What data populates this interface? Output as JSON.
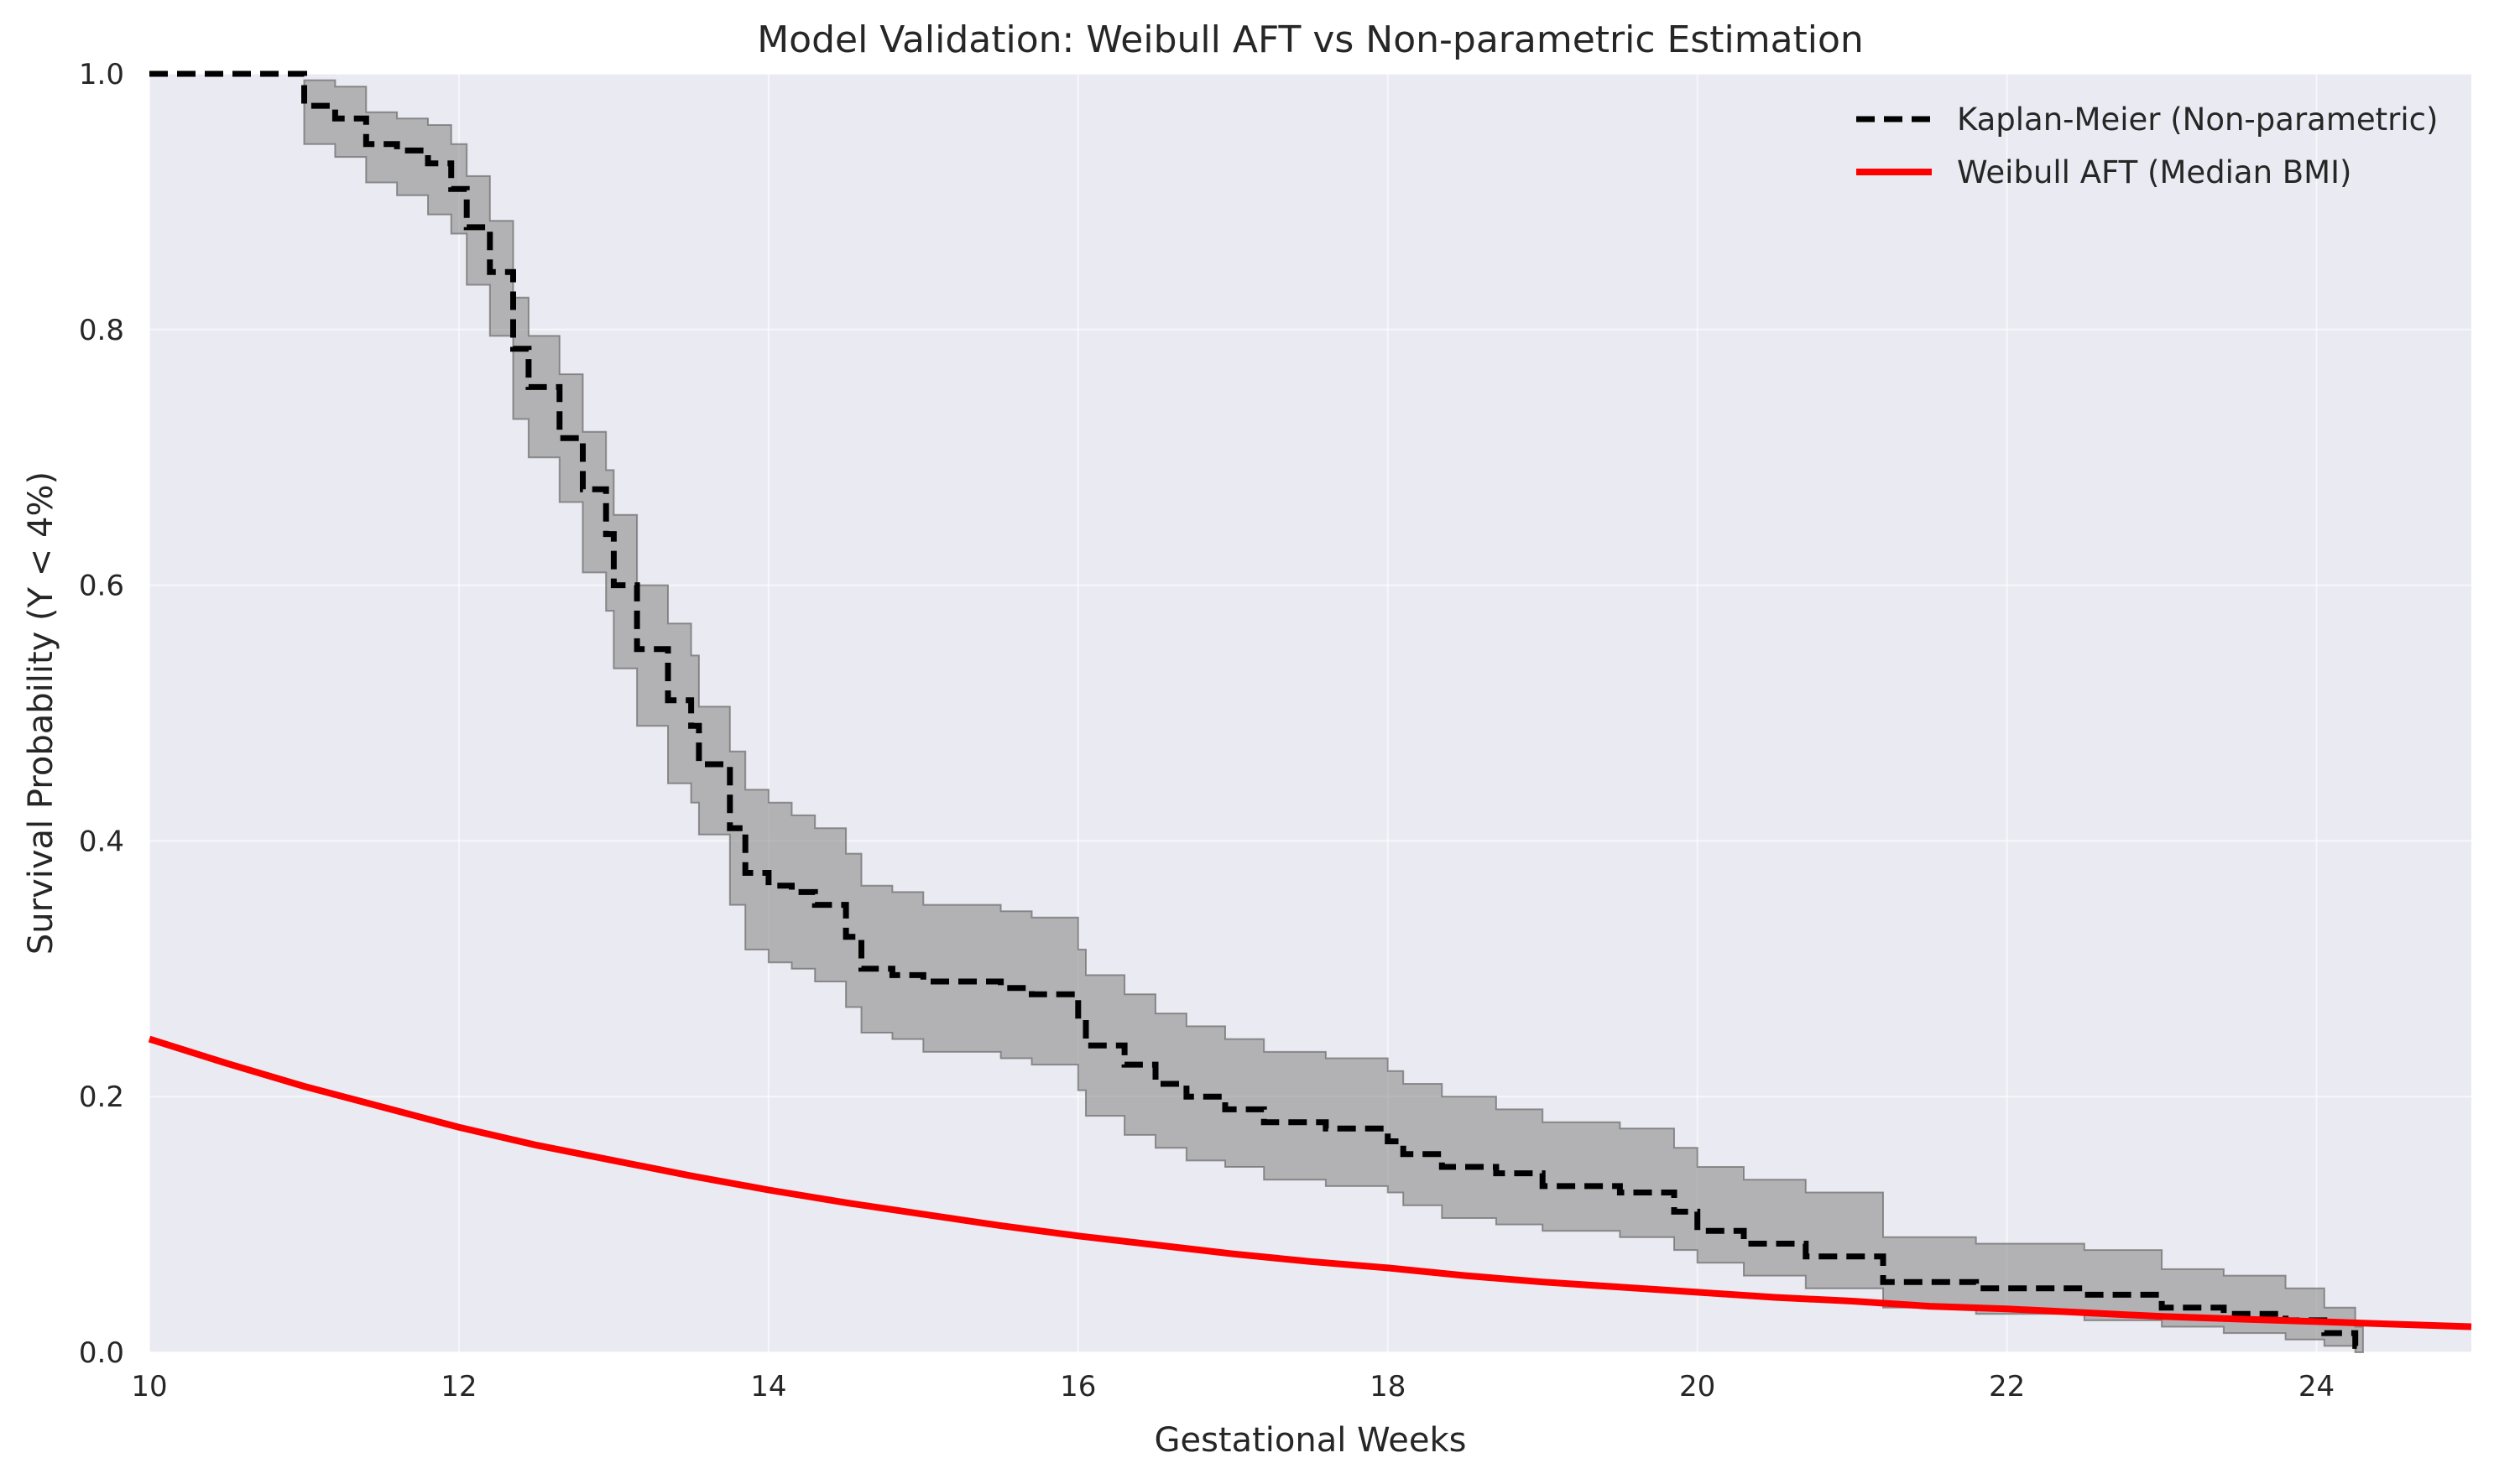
{
  "chart_data": {
    "type": "line",
    "title": "Model Validation: Weibull AFT vs Non-parametric Estimation",
    "xlabel": "Gestational Weeks",
    "ylabel": "Survival Probability (Y < 4%)",
    "xlim": [
      10,
      25
    ],
    "ylim": [
      0,
      1.0
    ],
    "xticks": [
      10,
      12,
      14,
      16,
      18,
      20,
      22,
      24
    ],
    "xtick_labels": [
      "10",
      "12",
      "14",
      "16",
      "18",
      "20",
      "22",
      "24"
    ],
    "yticks": [
      0.0,
      0.2,
      0.4,
      0.6,
      0.8,
      1.0
    ],
    "ytick_labels": [
      "0.0",
      "0.2",
      "0.4",
      "0.6",
      "0.8",
      "1.0"
    ],
    "grid": true,
    "background": "#eaeaf2",
    "legend_position": "top-right",
    "series": [
      {
        "name": "Kaplan-Meier (Non-parametric)",
        "style": "dashed-step",
        "color": "#000000",
        "ci_color": "#8c8c8c",
        "points": [
          [
            10.0,
            1.0,
            1.0,
            1.0
          ],
          [
            11.0,
            0.975,
            0.995,
            0.945
          ],
          [
            11.2,
            0.965,
            0.99,
            0.935
          ],
          [
            11.4,
            0.945,
            0.97,
            0.915
          ],
          [
            11.6,
            0.94,
            0.965,
            0.905
          ],
          [
            11.8,
            0.93,
            0.96,
            0.89
          ],
          [
            11.95,
            0.91,
            0.945,
            0.875
          ],
          [
            12.05,
            0.88,
            0.92,
            0.835
          ],
          [
            12.2,
            0.845,
            0.885,
            0.795
          ],
          [
            12.35,
            0.785,
            0.825,
            0.73
          ],
          [
            12.45,
            0.755,
            0.795,
            0.7
          ],
          [
            12.65,
            0.715,
            0.765,
            0.665
          ],
          [
            12.8,
            0.675,
            0.72,
            0.61
          ],
          [
            12.95,
            0.64,
            0.69,
            0.58
          ],
          [
            13.0,
            0.6,
            0.655,
            0.535
          ],
          [
            13.15,
            0.55,
            0.6,
            0.49
          ],
          [
            13.35,
            0.51,
            0.57,
            0.445
          ],
          [
            13.5,
            0.49,
            0.545,
            0.43
          ],
          [
            13.55,
            0.46,
            0.505,
            0.405
          ],
          [
            13.75,
            0.41,
            0.47,
            0.35
          ],
          [
            13.85,
            0.375,
            0.44,
            0.315
          ],
          [
            14.0,
            0.365,
            0.43,
            0.305
          ],
          [
            14.15,
            0.36,
            0.42,
            0.3
          ],
          [
            14.3,
            0.35,
            0.41,
            0.29
          ],
          [
            14.5,
            0.325,
            0.39,
            0.27
          ],
          [
            14.6,
            0.3,
            0.365,
            0.25
          ],
          [
            14.8,
            0.295,
            0.36,
            0.245
          ],
          [
            15.0,
            0.29,
            0.35,
            0.235
          ],
          [
            15.5,
            0.285,
            0.345,
            0.23
          ],
          [
            15.7,
            0.28,
            0.34,
            0.225
          ],
          [
            16.0,
            0.26,
            0.315,
            0.205
          ],
          [
            16.05,
            0.24,
            0.295,
            0.185
          ],
          [
            16.3,
            0.225,
            0.28,
            0.17
          ],
          [
            16.5,
            0.21,
            0.265,
            0.16
          ],
          [
            16.7,
            0.2,
            0.255,
            0.15
          ],
          [
            16.95,
            0.19,
            0.245,
            0.145
          ],
          [
            17.2,
            0.18,
            0.235,
            0.135
          ],
          [
            17.6,
            0.175,
            0.23,
            0.13
          ],
          [
            18.0,
            0.165,
            0.22,
            0.125
          ],
          [
            18.1,
            0.155,
            0.21,
            0.115
          ],
          [
            18.35,
            0.145,
            0.2,
            0.105
          ],
          [
            18.7,
            0.14,
            0.19,
            0.1
          ],
          [
            19.0,
            0.13,
            0.18,
            0.095
          ],
          [
            19.5,
            0.125,
            0.175,
            0.09
          ],
          [
            19.85,
            0.11,
            0.16,
            0.08
          ],
          [
            20.0,
            0.095,
            0.145,
            0.07
          ],
          [
            20.3,
            0.085,
            0.135,
            0.06
          ],
          [
            20.7,
            0.075,
            0.125,
            0.05
          ],
          [
            21.2,
            0.055,
            0.09,
            0.035
          ],
          [
            21.8,
            0.05,
            0.085,
            0.03
          ],
          [
            22.5,
            0.045,
            0.08,
            0.025
          ],
          [
            23.0,
            0.035,
            0.065,
            0.02
          ],
          [
            23.4,
            0.03,
            0.06,
            0.015
          ],
          [
            23.8,
            0.025,
            0.05,
            0.01
          ],
          [
            24.05,
            0.015,
            0.035,
            0.005
          ],
          [
            24.25,
            0.005,
            0.02,
            0.0
          ]
        ]
      },
      {
        "name": "Weibull AFT (Median BMI)",
        "style": "solid",
        "color": "#ff0000",
        "x": [
          10,
          10.5,
          11,
          11.5,
          12,
          12.5,
          13,
          13.5,
          14,
          14.5,
          15,
          15.5,
          16,
          16.5,
          17,
          17.5,
          18,
          18.5,
          19,
          19.5,
          20,
          20.5,
          21,
          21.5,
          22,
          22.5,
          23,
          23.5,
          24,
          24.5,
          25
        ],
        "y": [
          0.245,
          0.226,
          0.208,
          0.192,
          0.176,
          0.162,
          0.15,
          0.138,
          0.127,
          0.117,
          0.108,
          0.099,
          0.091,
          0.084,
          0.077,
          0.071,
          0.066,
          0.06,
          0.055,
          0.051,
          0.047,
          0.043,
          0.04,
          0.036,
          0.034,
          0.031,
          0.028,
          0.026,
          0.024,
          0.022,
          0.02
        ]
      }
    ]
  }
}
